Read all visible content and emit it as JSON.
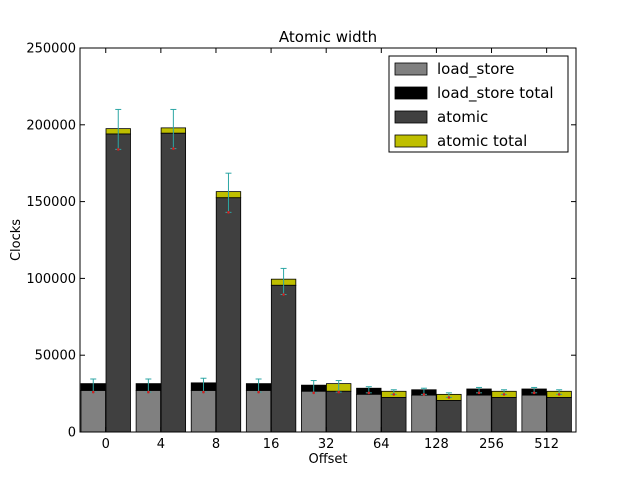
{
  "chart_data": {
    "type": "bar",
    "title": "Atomic width",
    "xlabel": "Offset",
    "ylabel": "Clocks",
    "ylim": [
      0,
      250000
    ],
    "yticks": [
      0,
      50000,
      100000,
      150000,
      200000,
      250000
    ],
    "grid": false,
    "legend_position": "top-right",
    "categories": [
      "0",
      "4",
      "8",
      "16",
      "32",
      "64",
      "128",
      "256",
      "512"
    ],
    "series": [
      {
        "name": "load_store",
        "color": "#808080",
        "values": [
          27000,
          27000,
          27000,
          27000,
          26500,
          24500,
          24000,
          24000,
          24000
        ]
      },
      {
        "name": "load_store total",
        "color": "#000000",
        "values": [
          31500,
          31500,
          32000,
          31500,
          30500,
          28500,
          27500,
          28000,
          28000
        ]
      },
      {
        "name": "atomic",
        "color": "#404040",
        "values": [
          194000,
          194500,
          152500,
          95500,
          26500,
          22500,
          20500,
          22500,
          22500
        ]
      },
      {
        "name": "atomic total",
        "color": "#bfbf00",
        "values": [
          197500,
          198000,
          156500,
          99500,
          31500,
          26500,
          24500,
          26500,
          26500
        ]
      }
    ],
    "error_bars": {
      "load_store_total": {
        "color": "#2ca6a4",
        "low": [
          26000,
          26000,
          26000,
          26000,
          25500,
          25500,
          24500,
          25500,
          25500
        ],
        "high": [
          34500,
          34500,
          35000,
          34500,
          33500,
          29500,
          28500,
          29000,
          29000
        ]
      },
      "atomic_total": {
        "color": "#2ca6a4",
        "low": [
          184000,
          184500,
          143000,
          89500,
          26000,
          24500,
          22500,
          24500,
          24500
        ],
        "high": [
          210000,
          210000,
          168500,
          106500,
          33500,
          27500,
          25500,
          27500,
          27500
        ]
      }
    }
  }
}
